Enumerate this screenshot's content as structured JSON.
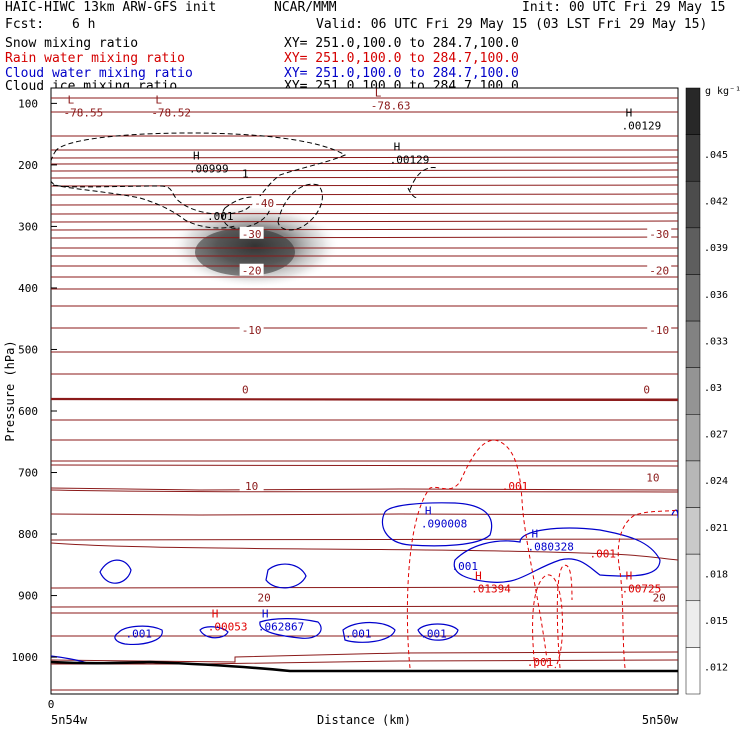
{
  "header": {
    "title_left": "HAIC-HIWC 13km ARW-GFS init",
    "org": "NCAR/MMM",
    "init": "Init: 00 UTC Fri 29 May 15",
    "fcst_label": "Fcst:",
    "fcst_value": "6 h",
    "valid": "Valid: 06 UTC Fri 29 May 15 (03 LST Fri 29 May 15)"
  },
  "fields": [
    {
      "name": "Snow mixing ratio",
      "xy": "XY= 251.0,100.0 to 284.7,100.0",
      "color": "#000000"
    },
    {
      "name": "Rain water mixing ratio",
      "xy": "XY= 251.0,100.0 to 284.7,100.0",
      "color": "#d40000"
    },
    {
      "name": "Cloud water mixing ratio",
      "xy": "XY= 251.0,100.0 to 284.7,100.0",
      "color": "#0000c8"
    },
    {
      "name": "Cloud ice mixing ratio",
      "xy": "XY= 251.0,100.0 to 284.7,100.0",
      "color": "#000000"
    }
  ],
  "colors": {
    "temperature": "#8b1a1a",
    "rain": "#e00000",
    "cloud_water": "#0000cc",
    "snow": "#000000",
    "terrain": "#000000"
  },
  "chart_data": {
    "type": "cross-section",
    "ylabel": "Pressure (hPa)",
    "xlabel": "Distance (km)",
    "x_left_label": "5n54w",
    "x_right_label": "5n50w",
    "x_tick_zero": "0",
    "y_ticks": [
      100,
      200,
      300,
      400,
      500,
      600,
      700,
      800,
      900,
      1000
    ],
    "ylim": [
      1060,
      75
    ],
    "colorbar": {
      "unit": "g kg⁻¹",
      "labels": [
        ".045",
        ".042",
        ".039",
        ".036",
        ".033",
        ".03",
        ".027",
        ".024",
        ".021",
        ".018",
        ".015",
        ".012"
      ]
    },
    "temperature_labels": [
      {
        "text": "-40",
        "x": 0.34,
        "p": 262
      },
      {
        "text": "-30",
        "x": 0.32,
        "p": 312
      },
      {
        "text": "-30",
        "x": 0.97,
        "p": 312
      },
      {
        "text": "-20",
        "x": 0.32,
        "p": 372
      },
      {
        "text": "-20",
        "x": 0.97,
        "p": 372
      },
      {
        "text": "-10",
        "x": 0.32,
        "p": 468
      },
      {
        "text": "-10",
        "x": 0.97,
        "p": 468
      },
      {
        "text": "0",
        "x": 0.31,
        "p": 565
      },
      {
        "text": "0",
        "x": 0.95,
        "p": 565
      },
      {
        "text": "10",
        "x": 0.32,
        "p": 722
      },
      {
        "text": "10",
        "x": 0.96,
        "p": 708
      },
      {
        "text": "20",
        "x": 0.34,
        "p": 903
      },
      {
        "text": "20",
        "x": 0.97,
        "p": 903
      }
    ],
    "extrema_labels": [
      {
        "mark": "L",
        "value": "-78.55",
        "x": 0.02,
        "p": 107,
        "color": "temperature"
      },
      {
        "mark": "L",
        "value": "-78.52",
        "x": 0.16,
        "p": 107,
        "color": "temperature"
      },
      {
        "mark": "L",
        "value": "-78.63",
        "x": 0.51,
        "p": 95,
        "color": "temperature"
      },
      {
        "mark": "H",
        "value": ".00129",
        "x": 0.91,
        "p": 128,
        "color": "snow"
      },
      {
        "mark": "H",
        "value": ".00999",
        "x": 0.22,
        "p": 198,
        "color": "snow"
      },
      {
        "mark": "H",
        "value": ".00129",
        "x": 0.54,
        "p": 183,
        "color": "snow"
      },
      {
        "mark": "H",
        "value": ".090008",
        "x": 0.59,
        "p": 775,
        "color": "cloud_water"
      },
      {
        "mark": "H",
        "value": ".080328",
        "x": 0.76,
        "p": 812,
        "color": "cloud_water"
      },
      {
        "mark": "H",
        "value": ".062867",
        "x": 0.33,
        "p": 942,
        "color": "cloud_water"
      },
      {
        "mark": "H",
        "value": ".01394",
        "x": 0.67,
        "p": 880,
        "color": "rain"
      },
      {
        "mark": "H",
        "value": ".00725",
        "x": 0.91,
        "p": 880,
        "color": "rain"
      },
      {
        "mark": "H",
        "value": ".00053",
        "x": 0.25,
        "p": 942,
        "color": "rain"
      }
    ],
    "contour_labels": [
      {
        "text": ".001",
        "x": 0.27,
        "p": 283,
        "color": "snow"
      },
      {
        "text": "1",
        "x": 0.31,
        "p": 214,
        "color": "snow"
      },
      {
        "text": ".001",
        "x": 0.74,
        "p": 722,
        "color": "rain"
      },
      {
        "text": ".001",
        "x": 0.88,
        "p": 832,
        "color": "rain"
      },
      {
        "text": ".001",
        "x": 0.78,
        "p": 1008,
        "color": "rain"
      },
      {
        "text": ".001",
        "x": 0.66,
        "p": 852,
        "color": "cloud_water"
      },
      {
        "text": ".001",
        "x": 0.14,
        "p": 962,
        "color": "cloud_water"
      },
      {
        "text": ".001",
        "x": 0.49,
        "p": 962,
        "color": "cloud_water"
      },
      {
        "text": ".001",
        "x": 0.61,
        "p": 962,
        "color": "cloud_water"
      }
    ]
  }
}
